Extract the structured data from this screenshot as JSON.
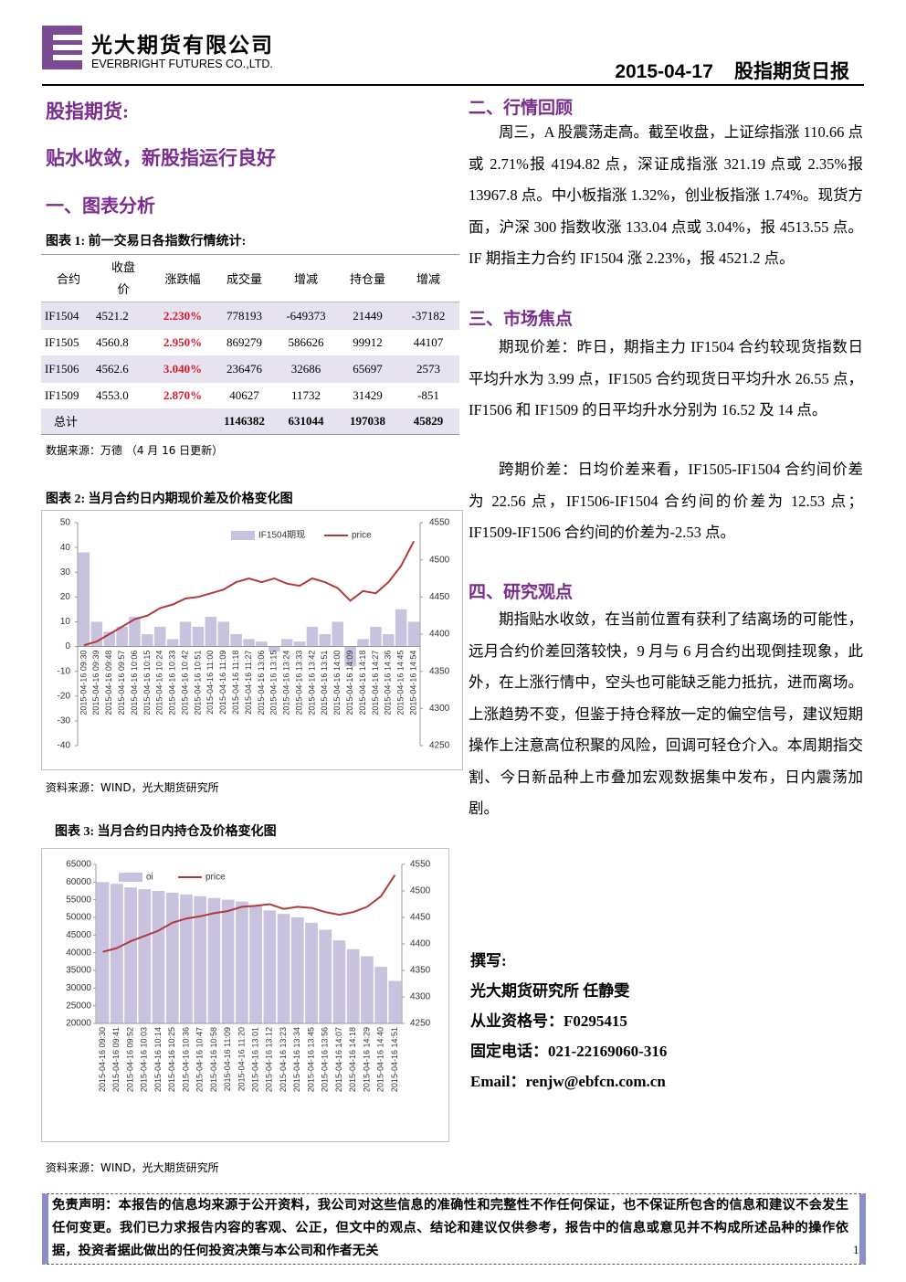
{
  "header": {
    "company_cn": "光大期货有限公司",
    "company_en": "EVERBRIGHT FUTURES CO.,LTD.",
    "date": "2015-04-17",
    "report_name": "股指期货日报"
  },
  "left": {
    "section_title": "股指期货:",
    "headline": "贴水收敛，新股指运行良好",
    "heading": "一、图表分析"
  },
  "table": {
    "caption": "图表 1:  前一交易日各指数行情统计:",
    "columns": [
      "合约",
      "收盘价",
      "涨跌幅",
      "成交量",
      "增减",
      "持仓量",
      "增减"
    ],
    "rows": [
      [
        "IF1504",
        "4521.2",
        "2.230%",
        "778193",
        "-649373",
        "21449",
        "-37182"
      ],
      [
        "IF1505",
        "4560.8",
        "2.950%",
        "869279",
        "586626",
        "99912",
        "44107"
      ],
      [
        "IF1506",
        "4562.6",
        "3.040%",
        "236476",
        "32686",
        "65697",
        "2573"
      ],
      [
        "IF1509",
        "4553.0",
        "2.870%",
        "40627",
        "11732",
        "31429",
        "-851"
      ]
    ],
    "total": {
      "label": "总计",
      "values": [
        "1146382",
        "631044",
        "197038",
        "45829"
      ]
    },
    "source": "数据来源：万德 （4 月 16 日更新）"
  },
  "chart_data": [
    {
      "type": "combo",
      "title": "图表 2: 当月合约日内期现价差及价格变化图",
      "source": "资料来源：WIND，光大期货研究所",
      "categories": [
        "2015-04-16 09:30",
        "2015-04-16 09:39",
        "2015-04-16 09:48",
        "2015-04-16 09:57",
        "2015-04-16 10:06",
        "2015-04-16 10:15",
        "2015-04-16 10:24",
        "2015-04-16 10:33",
        "2015-04-16 10:42",
        "2015-04-16 10:51",
        "2015-04-16 11:00",
        "2015-04-16 11:09",
        "2015-04-16 11:18",
        "2015-04-16 11:27",
        "2015-04-16 13:06",
        "2015-04-16 13:15",
        "2015-04-16 13:24",
        "2015-04-16 13:33",
        "2015-04-16 13:42",
        "2015-04-16 13:51",
        "2015-04-16 14:00",
        "2015-04-16 14:09",
        "2015-04-16 14:18",
        "2015-04-16 14:27",
        "2015-04-16 14:36",
        "2015-04-16 14:45",
        "2015-04-16 14:54"
      ],
      "series": [
        {
          "name": "IF1504期现",
          "type": "bar",
          "color": "#c9c2df",
          "values": [
            38,
            10,
            6,
            8,
            12,
            5,
            8,
            3,
            10,
            8,
            12,
            10,
            5,
            3,
            2,
            -2,
            3,
            2,
            8,
            5,
            10,
            -8,
            3,
            8,
            5,
            15,
            10
          ]
        },
        {
          "name": "price",
          "type": "line",
          "color": "#b03a3a",
          "axis": "y2",
          "values": [
            4385,
            4390,
            4400,
            4410,
            4420,
            4425,
            4435,
            4440,
            4448,
            4450,
            4455,
            4460,
            4470,
            4475,
            4470,
            4475,
            4468,
            4465,
            4475,
            4470,
            4462,
            4445,
            4458,
            4455,
            4470,
            4492,
            4525
          ]
        }
      ],
      "ylim": [
        -40,
        50
      ],
      "yticks": [
        -40,
        -30,
        -20,
        -10,
        0,
        10,
        20,
        30,
        40,
        50
      ],
      "y2lim": [
        4250,
        4550
      ],
      "y2ticks": [
        4250,
        4300,
        4350,
        4400,
        4450,
        4500,
        4550
      ],
      "grid": false
    },
    {
      "type": "combo",
      "title": "图表 3:  当月合约日内持仓及价格变化图",
      "source": "资料来源：WIND，光大期货研究所",
      "categories": [
        "2015-04-16 09:30",
        "2015-04-16 09:41",
        "2015-04-16 09:52",
        "2015-04-16 10:03",
        "2015-04-16 10:14",
        "2015-04-16 10:25",
        "2015-04-16 10:36",
        "2015-04-16 10:47",
        "2015-04-16 10:58",
        "2015-04-16 11:09",
        "2015-04-16 11:20",
        "2015-04-16 13:01",
        "2015-04-16 13:12",
        "2015-04-16 13:23",
        "2015-04-16 13:34",
        "2015-04-16 13:45",
        "2015-04-16 13:56",
        "2015-04-16 14:07",
        "2015-04-16 14:18",
        "2015-04-16 14:29",
        "2015-04-16 14:40",
        "2015-04-16 14:51"
      ],
      "series": [
        {
          "name": "oi",
          "type": "bar",
          "color": "#c9c2df",
          "values": [
            60000,
            59500,
            58500,
            58000,
            57500,
            57000,
            56500,
            56000,
            55500,
            55000,
            54500,
            53500,
            52000,
            51000,
            50000,
            48500,
            46500,
            43500,
            41000,
            39000,
            36000,
            32000
          ]
        },
        {
          "name": "price",
          "type": "line",
          "color": "#b03a3a",
          "axis": "y2",
          "values": [
            4385,
            4392,
            4405,
            4415,
            4425,
            4440,
            4448,
            4452,
            4458,
            4462,
            4470,
            4472,
            4475,
            4466,
            4470,
            4468,
            4460,
            4455,
            4460,
            4470,
            4490,
            4530
          ]
        }
      ],
      "ylim": [
        20000,
        65000
      ],
      "yticks": [
        20000,
        25000,
        30000,
        35000,
        40000,
        45000,
        50000,
        55000,
        60000,
        65000
      ],
      "y2lim": [
        4250,
        4550
      ],
      "y2ticks": [
        4250,
        4300,
        4350,
        4400,
        4450,
        4500,
        4550
      ],
      "grid": false
    }
  ],
  "sections": [
    {
      "heading": "二、行情回顾",
      "paragraphs": [
        "周三，A 股震荡走高。截至收盘，上证综指涨 110.66 点或 2.71%报 4194.82 点，深证成指涨 321.19 点或 2.35%报 13967.8 点。中小板指涨 1.32%，创业板指涨 1.74%。现货方面，沪深 300 指数收涨 133.04 点或 3.04%，报 4513.55 点。IF 期指主力合约 IF1504 涨 2.23%，报 4521.2 点。"
      ]
    },
    {
      "heading": "三、市场焦点",
      "paragraphs": [
        "期现价差：昨日，期指主力 IF1504 合约较现货指数日平均升水为 3.99 点，IF1505 合约现货日平均升水 26.55 点，IF1506 和 IF1509 的日平均升水分别为 16.52 及 14 点。",
        "跨期价差：日均价差来看，IF1505-IF1504 合约间价差为 22.56 点，IF1506-IF1504 合约间的价差为 12.53 点；IF1509-IF1506 合约间的价差为-2.53 点。"
      ]
    },
    {
      "heading": "四、研究观点",
      "paragraphs": [
        "期指贴水收敛，在当前位置有获利了结离场的可能性，远月合约价差回落较快，9 月与 6 月合约出现倒挂现象，此外，在上涨行情中，空头也可能缺乏能力抵抗，进而离场。上涨趋势不变，但鉴于持仓释放一定的偏空信号，建议短期操作上注意高位积聚的风险，回调可轻仓介入。本周期指交割、今日新品种上市叠加宏观数据集中发布，日内震荡加剧。"
      ]
    }
  ],
  "author": {
    "label": "撰写:",
    "lines": [
      "光大期货研究所  任静雯",
      "从业资格号：F0295415",
      "固定电话：021-22169060-316",
      "Email：renjw@ebfcn.com.cn"
    ]
  },
  "footer": {
    "disclaimer": "免责声明：本报告的信息均来源于公开资料，我公司对这些信息的准确性和完整性不作任何保证，也不保证所包含的信息和建议不会发生任何变更。我们已力求报告内容的客观、公正，但文中的观点、结论和建议仅供参考，报告中的信息或意见并不构成所述品种的操作依据，投资者据此做出的任何投资决策与本公司和作者无关",
    "page": "1"
  }
}
